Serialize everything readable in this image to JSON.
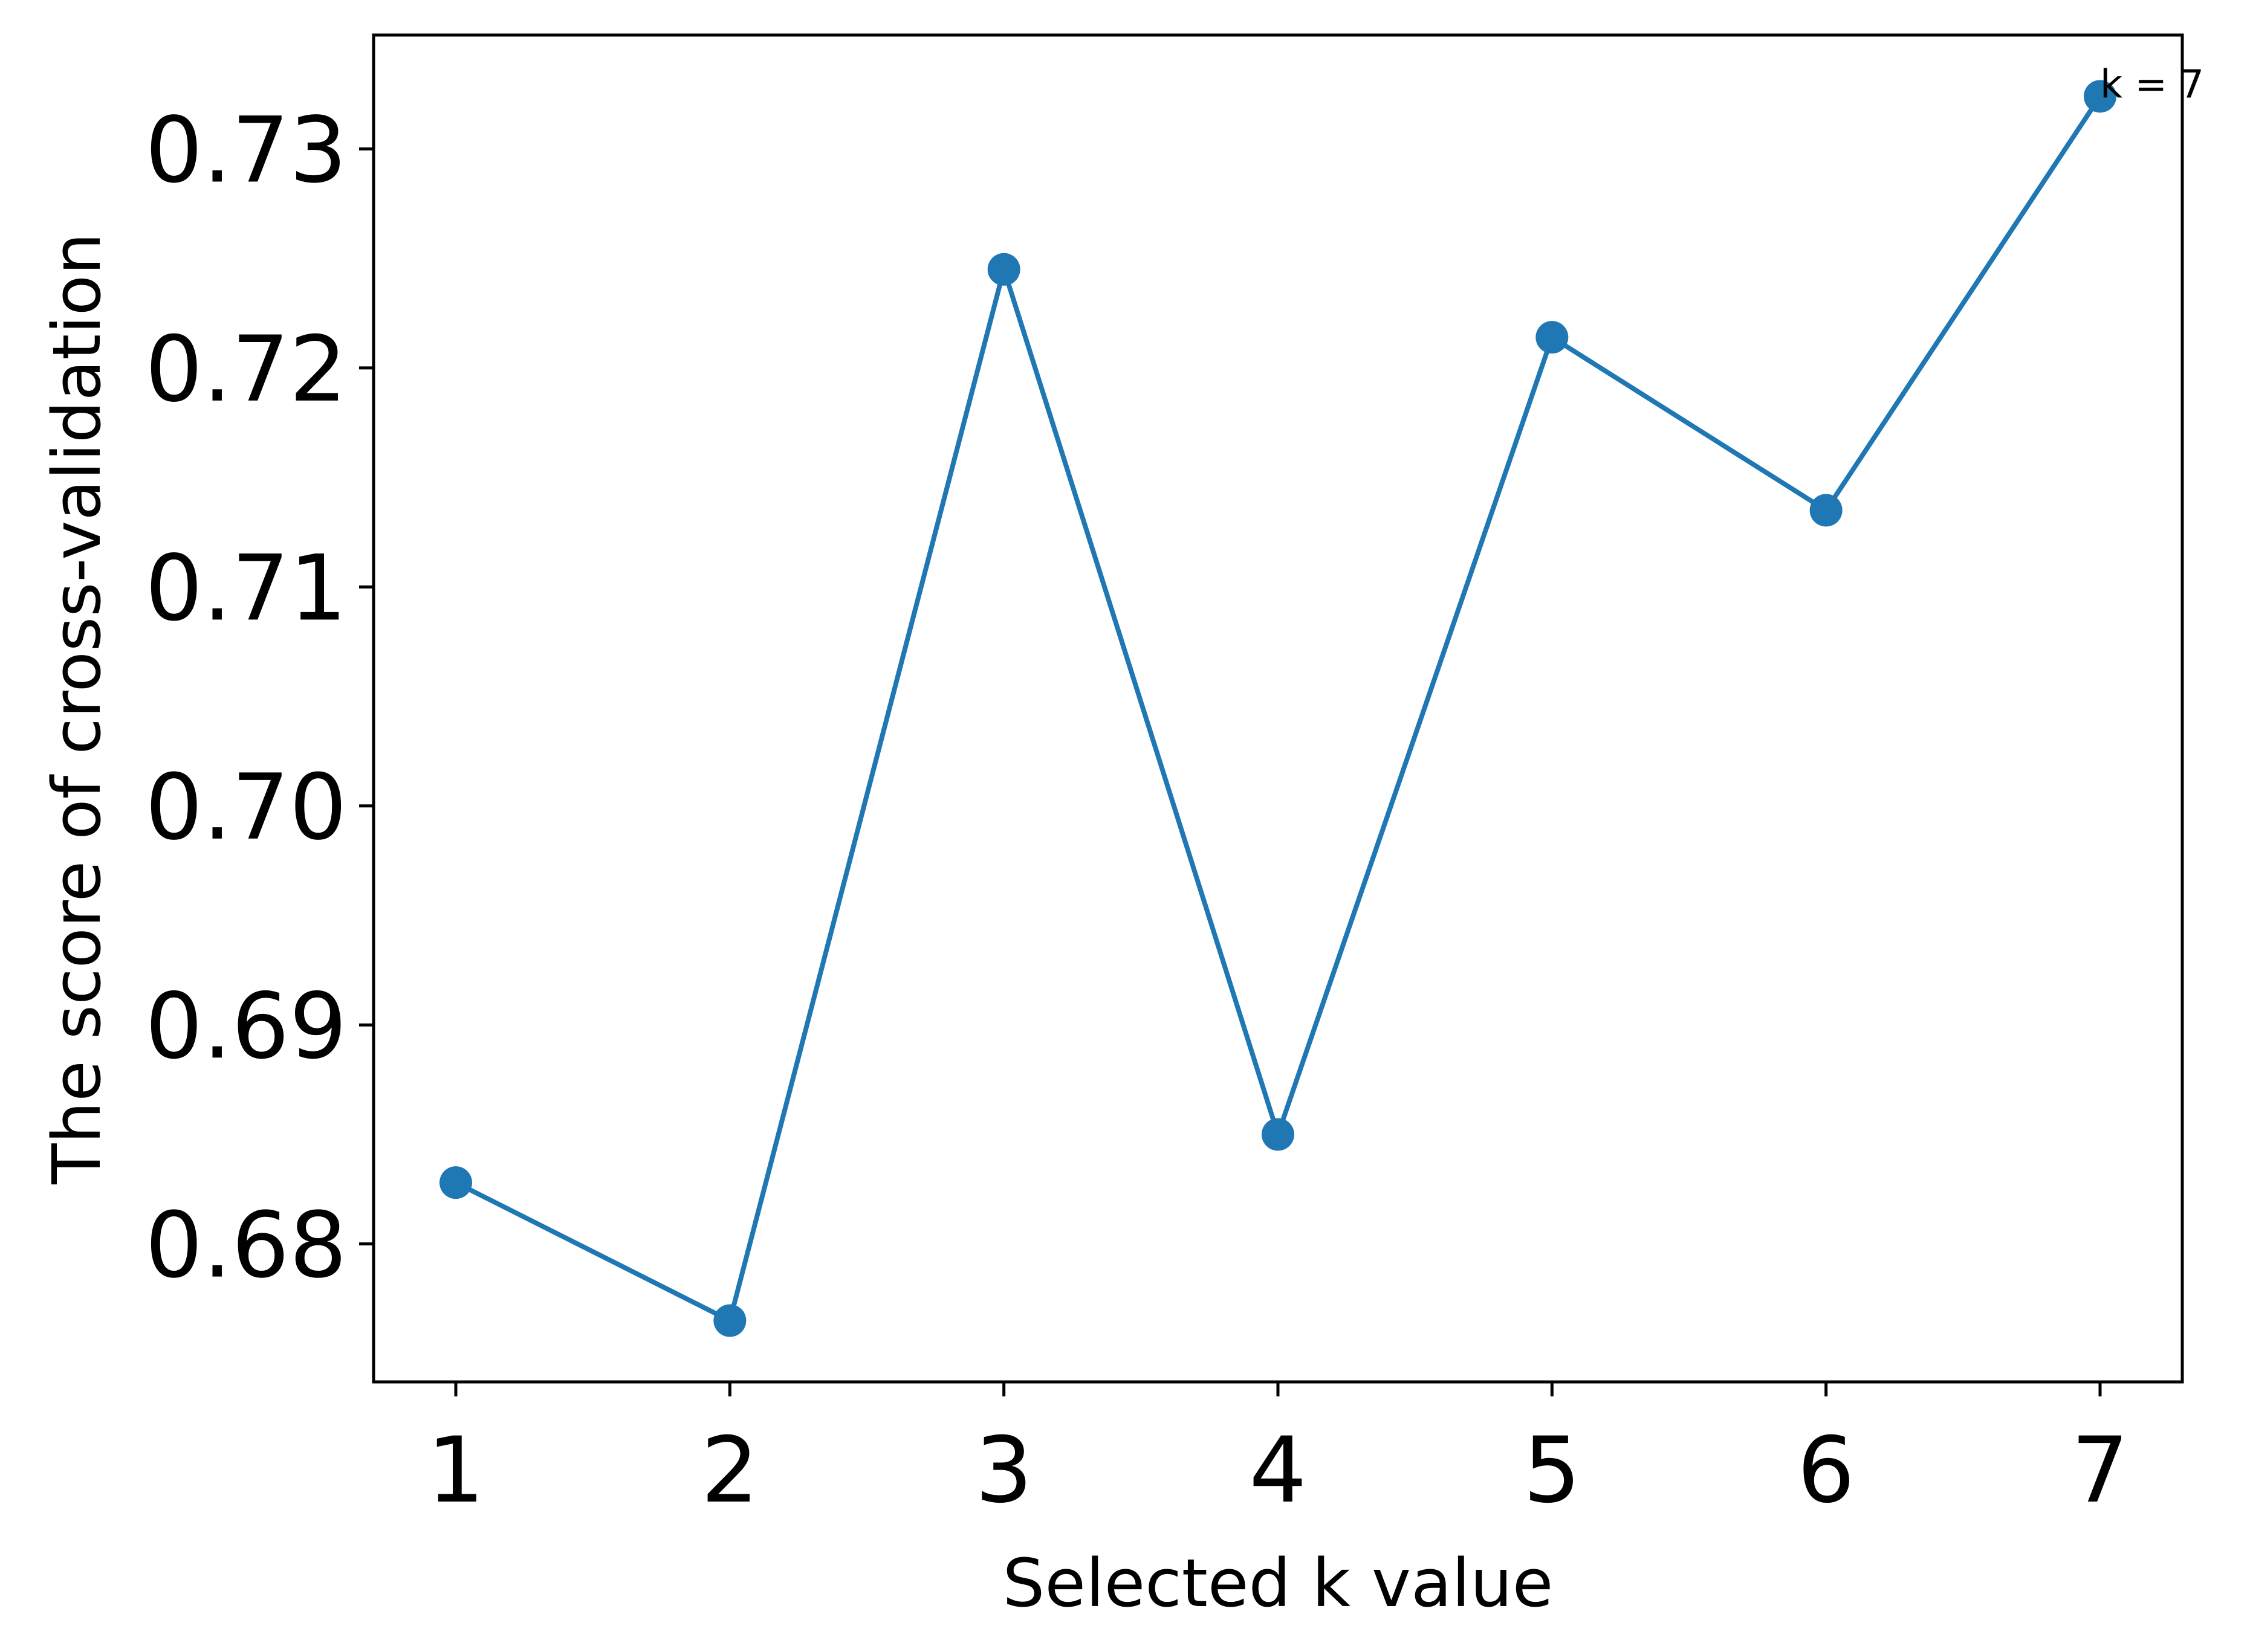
{
  "chart_data": {
    "type": "line",
    "title": "",
    "xlabel": "Selected k value",
    "ylabel": "The score of cross-validation",
    "x": [
      1,
      2,
      3,
      4,
      5,
      6,
      7
    ],
    "x_tick_labels": [
      "1",
      "2",
      "3",
      "4",
      "5",
      "6",
      "7"
    ],
    "y_tick_values": [
      0.68,
      0.69,
      0.7,
      0.71,
      0.72,
      0.73
    ],
    "y_tick_labels": [
      "0.68",
      "0.69",
      "0.70",
      "0.71",
      "0.72",
      "0.73"
    ],
    "xlim": [
      0.7,
      7.3
    ],
    "ylim": [
      0.6737,
      0.7352
    ],
    "series": [
      {
        "values": [
          0.6828,
          0.6765,
          0.7245,
          0.685,
          0.7214,
          0.7135,
          0.7324
        ],
        "color": "#1f77b4",
        "marker": "circle"
      }
    ],
    "annotations": [
      {
        "text": "k = 7",
        "x": 7,
        "y": 0.7324
      }
    ],
    "grid": false,
    "legend": "none"
  }
}
